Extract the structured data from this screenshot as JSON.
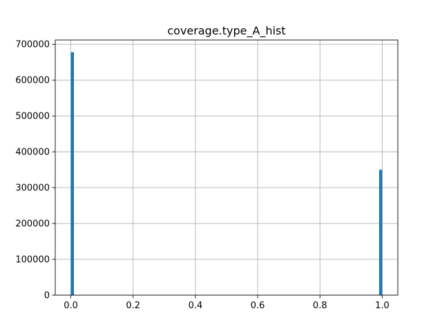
{
  "chart_data": {
    "type": "bar",
    "title": "coverage.type_A_hist",
    "xlabel": "",
    "ylabel": "",
    "xlim": [
      -0.05,
      1.05
    ],
    "ylim": [
      0,
      712000
    ],
    "grid": true,
    "bar_color": "#1f77b4",
    "bars": [
      {
        "x_start": 0.0,
        "x_end": 0.01,
        "value": 678000
      },
      {
        "x_start": 0.99,
        "x_end": 1.0,
        "value": 350000
      }
    ],
    "x_ticks": [
      {
        "value": 0.0,
        "label": "0.0"
      },
      {
        "value": 0.2,
        "label": "0.2"
      },
      {
        "value": 0.4,
        "label": "0.4"
      },
      {
        "value": 0.6,
        "label": "0.6"
      },
      {
        "value": 0.8,
        "label": "0.8"
      },
      {
        "value": 1.0,
        "label": "1.0"
      }
    ],
    "y_ticks": [
      {
        "value": 0,
        "label": "0"
      },
      {
        "value": 100000,
        "label": "100000"
      },
      {
        "value": 200000,
        "label": "200000"
      },
      {
        "value": 300000,
        "label": "300000"
      },
      {
        "value": 400000,
        "label": "400000"
      },
      {
        "value": 500000,
        "label": "500000"
      },
      {
        "value": 600000,
        "label": "600000"
      },
      {
        "value": 700000,
        "label": "700000"
      }
    ]
  }
}
